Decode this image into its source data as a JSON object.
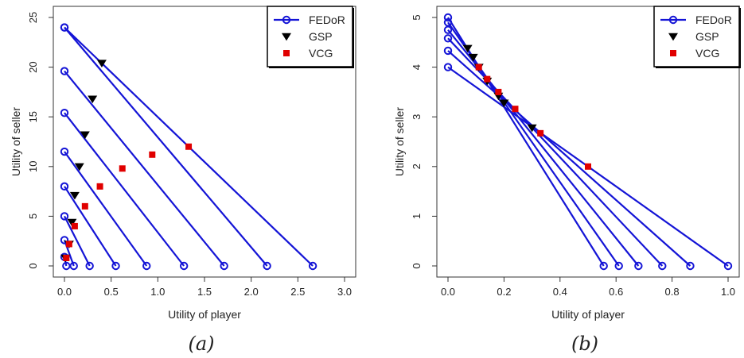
{
  "chart_data": [
    {
      "type": "line",
      "panel_label": "(a)",
      "xlabel": "Utility of player",
      "ylabel": "Utility of seller",
      "xlim": [
        0,
        3
      ],
      "ylim": [
        0,
        25
      ],
      "x_ticks": [
        "0.0",
        "0.5",
        "1.0",
        "1.5",
        "2.0",
        "2.5",
        "3.0"
      ],
      "y_ticks": [
        "0",
        "5",
        "10",
        "15",
        "20",
        "25"
      ],
      "grid": false,
      "legend_position": "top-right",
      "legend": [
        "FEDoR",
        "GSP",
        "VCG"
      ],
      "series": [
        {
          "name": "FEDoR",
          "marker": "open-circle",
          "lines": [
            [
              [
                0,
                0.9
              ],
              [
                0.02,
                0
              ]
            ],
            [
              [
                0,
                2.6
              ],
              [
                0.1,
                0
              ]
            ],
            [
              [
                0,
                5.0
              ],
              [
                0.27,
                0
              ]
            ],
            [
              [
                0,
                8.0
              ],
              [
                0.55,
                0
              ]
            ],
            [
              [
                0,
                11.5
              ],
              [
                0.88,
                0
              ]
            ],
            [
              [
                0,
                15.4
              ],
              [
                1.28,
                0
              ]
            ],
            [
              [
                0,
                19.6
              ],
              [
                1.71,
                0
              ]
            ],
            [
              [
                0,
                24.0
              ],
              [
                2.17,
                0
              ]
            ],
            [
              [
                0,
                24.0
              ],
              [
                2.66,
                0
              ]
            ]
          ]
        },
        {
          "name": "GSP",
          "marker": "filled-down-triangle",
          "points": [
            [
              0.01,
              0.8
            ],
            [
              0.05,
              2.2
            ],
            [
              0.08,
              4.4
            ],
            [
              0.11,
              7.1
            ],
            [
              0.16,
              10.0
            ],
            [
              0.22,
              13.2
            ],
            [
              0.3,
              16.8
            ],
            [
              0.4,
              20.4
            ]
          ]
        },
        {
          "name": "VCG",
          "marker": "filled-square",
          "points": [
            [
              0.02,
              0.8
            ],
            [
              0.05,
              2.2
            ],
            [
              0.11,
              4.0
            ],
            [
              0.22,
              6.0
            ],
            [
              0.38,
              8.0
            ],
            [
              0.62,
              9.8
            ],
            [
              0.94,
              11.2
            ],
            [
              1.33,
              12.0
            ]
          ]
        }
      ]
    },
    {
      "type": "line",
      "panel_label": "(b)",
      "xlabel": "Utility of player",
      "ylabel": "Utility of seller",
      "xlim": [
        0,
        1
      ],
      "ylim": [
        0,
        5
      ],
      "x_ticks": [
        "0.0",
        "0.2",
        "0.4",
        "0.6",
        "0.8",
        "1.0"
      ],
      "y_ticks": [
        "0",
        "1",
        "2",
        "3",
        "4",
        "5"
      ],
      "grid": false,
      "legend_position": "top-right",
      "legend": [
        "FEDoR",
        "GSP",
        "VCG"
      ],
      "series": [
        {
          "name": "FEDoR",
          "marker": "open-circle",
          "lines": [
            [
              [
                0,
                5.0
              ],
              [
                0.556,
                0
              ]
            ],
            [
              [
                0,
                4.9
              ],
              [
                0.61,
                0
              ]
            ],
            [
              [
                0,
                4.75
              ],
              [
                0.68,
                0
              ]
            ],
            [
              [
                0,
                4.58
              ],
              [
                0.765,
                0
              ]
            ],
            [
              [
                0,
                4.33
              ],
              [
                0.865,
                0
              ]
            ],
            [
              [
                0,
                4.0
              ],
              [
                1.0,
                0
              ]
            ]
          ]
        },
        {
          "name": "GSP",
          "marker": "filled-down-triangle",
          "points": [
            [
              0.07,
              4.38
            ],
            [
              0.09,
              4.2
            ],
            [
              0.11,
              4.0
            ],
            [
              0.14,
              3.72
            ],
            [
              0.18,
              3.42
            ],
            [
              0.2,
              3.28
            ],
            [
              0.3,
              2.78
            ]
          ]
        },
        {
          "name": "VCG",
          "marker": "filled-square",
          "points": [
            [
              0.11,
              4.0
            ],
            [
              0.14,
              3.76
            ],
            [
              0.18,
              3.5
            ],
            [
              0.24,
              3.16
            ],
            [
              0.33,
              2.67
            ],
            [
              0.5,
              2.0
            ]
          ]
        }
      ]
    }
  ]
}
